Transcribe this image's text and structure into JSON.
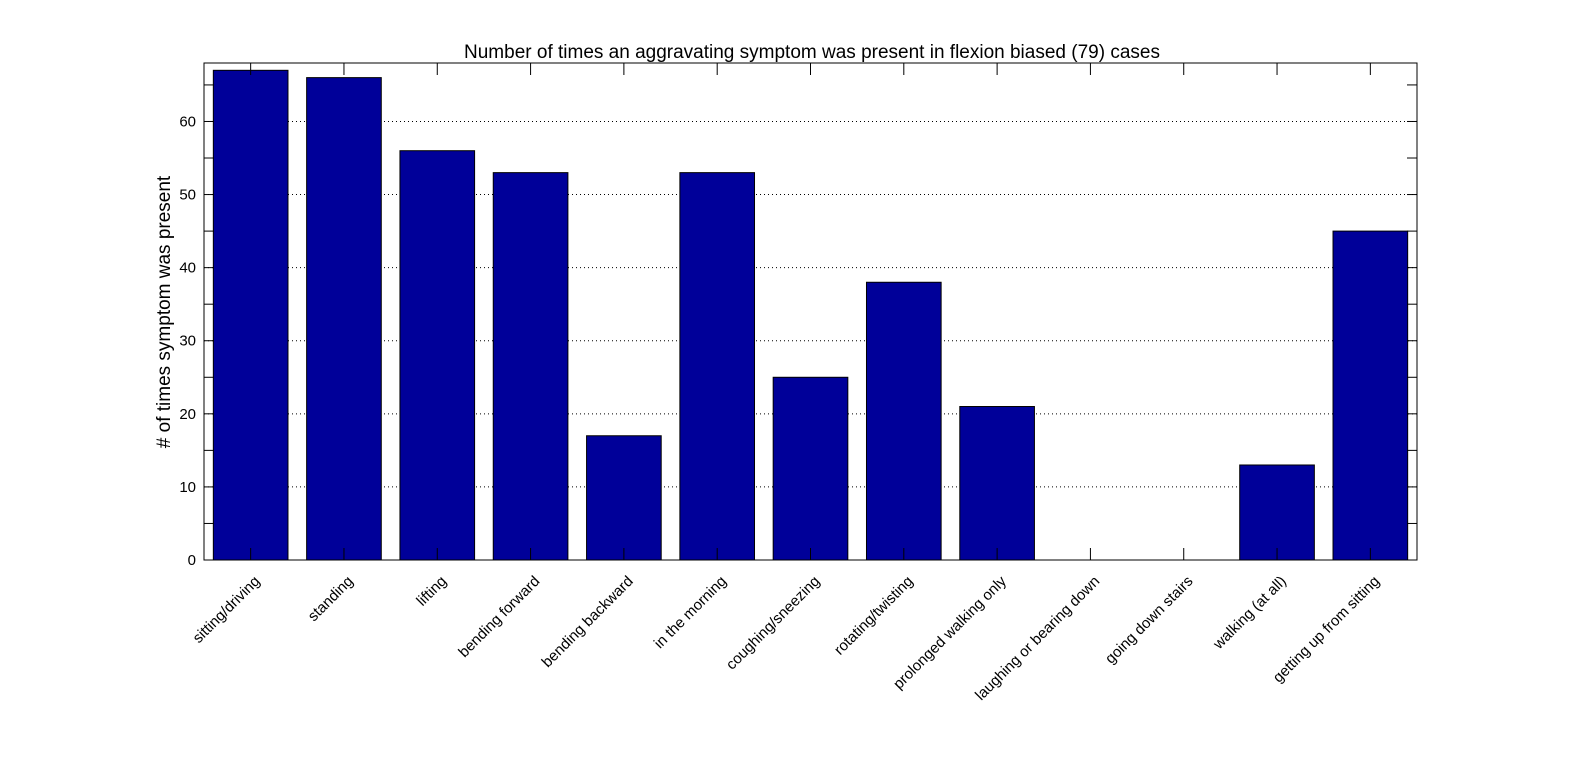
{
  "chart_data": {
    "type": "bar",
    "title": "Number of times an aggravating symptom was present in flexion biased (79) cases",
    "xlabel": "",
    "ylabel": "# of times symptom was present",
    "categories": [
      "sitting/driving",
      "standing",
      "lifting",
      "bending forward",
      "bending backward",
      "in the morning",
      "coughing/sneezing",
      "rotating/twisting",
      "prolonged walking only",
      "laughing or bearing down",
      "going down stairs",
      "walking (at all)",
      "getting up from sitting"
    ],
    "values": [
      67,
      66,
      56,
      53,
      17,
      53,
      25,
      38,
      21,
      0,
      0,
      13,
      45
    ],
    "ylim": [
      0,
      68
    ],
    "yticks": [
      "0",
      "10",
      "20",
      "30",
      "40",
      "50",
      "60"
    ],
    "grid": "y dotted",
    "bar_color": "#000099"
  }
}
